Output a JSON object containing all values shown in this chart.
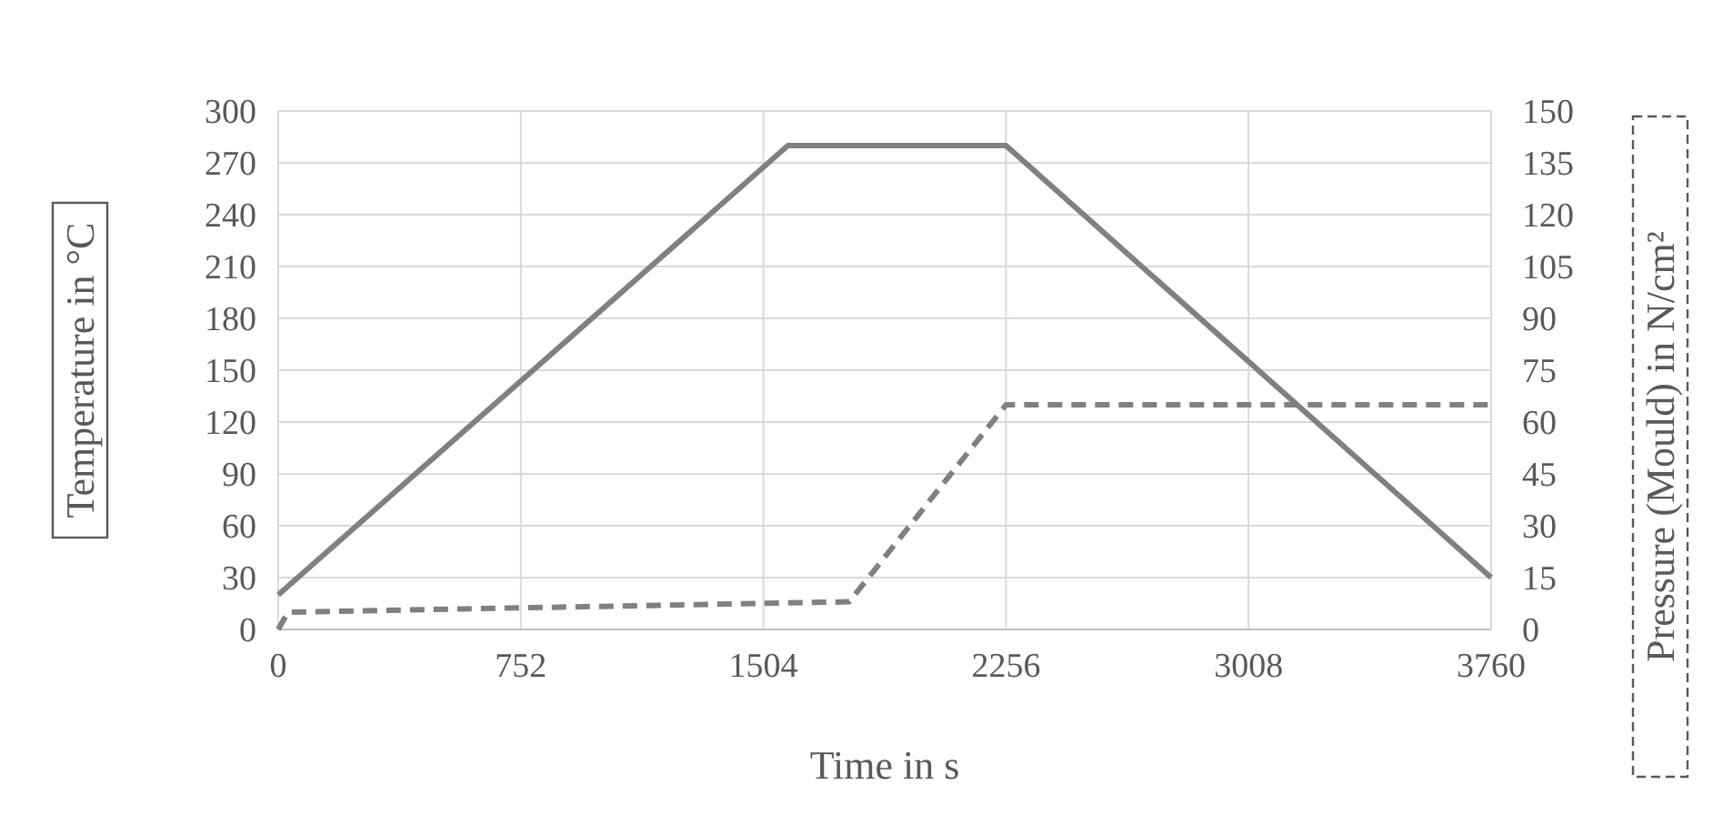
{
  "chart_data": {
    "type": "line",
    "xlabel": "Time in s",
    "ylabel": "Temperature in °C",
    "y2label": "Pressure (Mould) in N/cm²",
    "xlim": [
      0,
      3760
    ],
    "xticks": [
      0,
      752,
      1504,
      2256,
      3008,
      3760
    ],
    "ylim": [
      0,
      300
    ],
    "yticks": [
      0,
      30,
      60,
      90,
      120,
      150,
      180,
      210,
      240,
      270,
      300
    ],
    "y2lim": [
      0,
      150
    ],
    "y2ticks": [
      0,
      15,
      30,
      45,
      60,
      75,
      90,
      105,
      120,
      135,
      150
    ],
    "grid": true,
    "marker": "none",
    "series": [
      {
        "color": "#808080",
        "line_style": "solid",
        "x": [
          0,
          1580,
          2256,
          3760
        ],
        "values": [
          20,
          280,
          280,
          30
        ]
      },
      {
        "color": "#808080",
        "line_style": "dashed",
        "axis": "y2",
        "x": [
          0,
          30,
          1770,
          2256,
          3760
        ],
        "values": [
          0,
          5,
          8,
          65,
          65
        ]
      }
    ]
  }
}
